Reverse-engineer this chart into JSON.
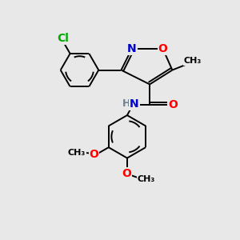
{
  "background_color": "#e8e8e8",
  "bond_color": "#000000",
  "atom_colors": {
    "N": "#0000cd",
    "O": "#ff0000",
    "Cl": "#00aa00",
    "H": "#708090",
    "C": "#000000"
  },
  "fig_size": [
    3.0,
    3.0
  ],
  "dpi": 100,
  "lw": 1.4,
  "xlim": [
    0,
    10
  ],
  "ylim": [
    0,
    10
  ]
}
